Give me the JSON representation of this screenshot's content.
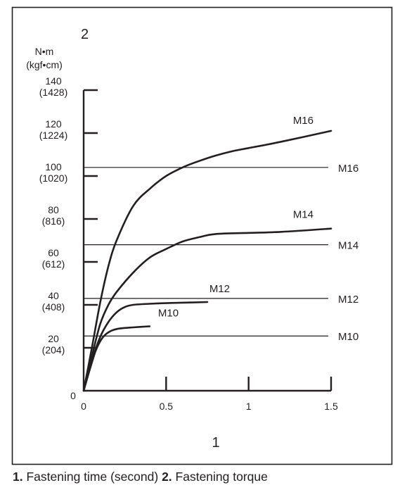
{
  "chart_data": {
    "type": "line",
    "y_axis_callout": "2",
    "x_axis_callout": "1",
    "y_unit_primary": "N•m",
    "y_unit_secondary": "(kgf•cm)",
    "xlim": [
      0,
      1.5
    ],
    "ylim": [
      0,
      140
    ],
    "x_ticks": [
      {
        "value": 0,
        "label": "0"
      },
      {
        "value": 0.5,
        "label": "0.5"
      },
      {
        "value": 1,
        "label": "1"
      },
      {
        "value": 1.5,
        "label": "1.5"
      }
    ],
    "y_ticks": [
      {
        "value": 0,
        "label": "0",
        "sub": ""
      },
      {
        "value": 20,
        "label": "20",
        "sub": "(204)"
      },
      {
        "value": 40,
        "label": "40",
        "sub": "(408)"
      },
      {
        "value": 60,
        "label": "60",
        "sub": "(612)"
      },
      {
        "value": 80,
        "label": "80",
        "sub": "(816)"
      },
      {
        "value": 100,
        "label": "100",
        "sub": "(1020)"
      },
      {
        "value": 120,
        "label": "120",
        "sub": "(1224)"
      },
      {
        "value": 140,
        "label": "140",
        "sub": "(1428)"
      }
    ],
    "curves": [
      {
        "name": "M10",
        "x": [
          0,
          0.03,
          0.07,
          0.1,
          0.13,
          0.17,
          0.22,
          0.3,
          0.4
        ],
        "y": [
          0,
          8,
          18,
          23,
          26,
          28,
          29,
          29.5,
          30
        ]
      },
      {
        "name": "M12",
        "x": [
          0,
          0.05,
          0.1,
          0.15,
          0.2,
          0.25,
          0.3,
          0.4,
          0.5,
          0.6,
          0.75
        ],
        "y": [
          0,
          14,
          25,
          32,
          36.5,
          39,
          40,
          40.5,
          40.8,
          41,
          41.3
        ]
      },
      {
        "name": "M14",
        "x": [
          0,
          0.05,
          0.1,
          0.15,
          0.2,
          0.3,
          0.4,
          0.5,
          0.6,
          0.7,
          0.8,
          1.0,
          1.2,
          1.5
        ],
        "y": [
          0,
          16,
          31,
          40,
          46,
          55,
          62,
          66,
          69.5,
          71.5,
          73,
          73.5,
          74,
          75.5
        ]
      },
      {
        "name": "M16",
        "x": [
          0,
          0.05,
          0.1,
          0.15,
          0.2,
          0.3,
          0.4,
          0.5,
          0.6,
          0.7,
          0.8,
          0.9,
          1.0,
          1.2,
          1.5
        ],
        "y": [
          0,
          20,
          41,
          58,
          70,
          86,
          94,
          100,
          104,
          107,
          109.5,
          111.5,
          113,
          116,
          121
        ]
      }
    ],
    "thresholds": [
      {
        "name": "M10",
        "y": 25.5
      },
      {
        "name": "M12",
        "y": 43
      },
      {
        "name": "M14",
        "y": 68
      },
      {
        "name": "M16",
        "y": 104
      }
    ],
    "caption": {
      "n1": "1.",
      "t1": " Fastening time (second) ",
      "n2": "2.",
      "t2": " Fastening torque"
    }
  }
}
